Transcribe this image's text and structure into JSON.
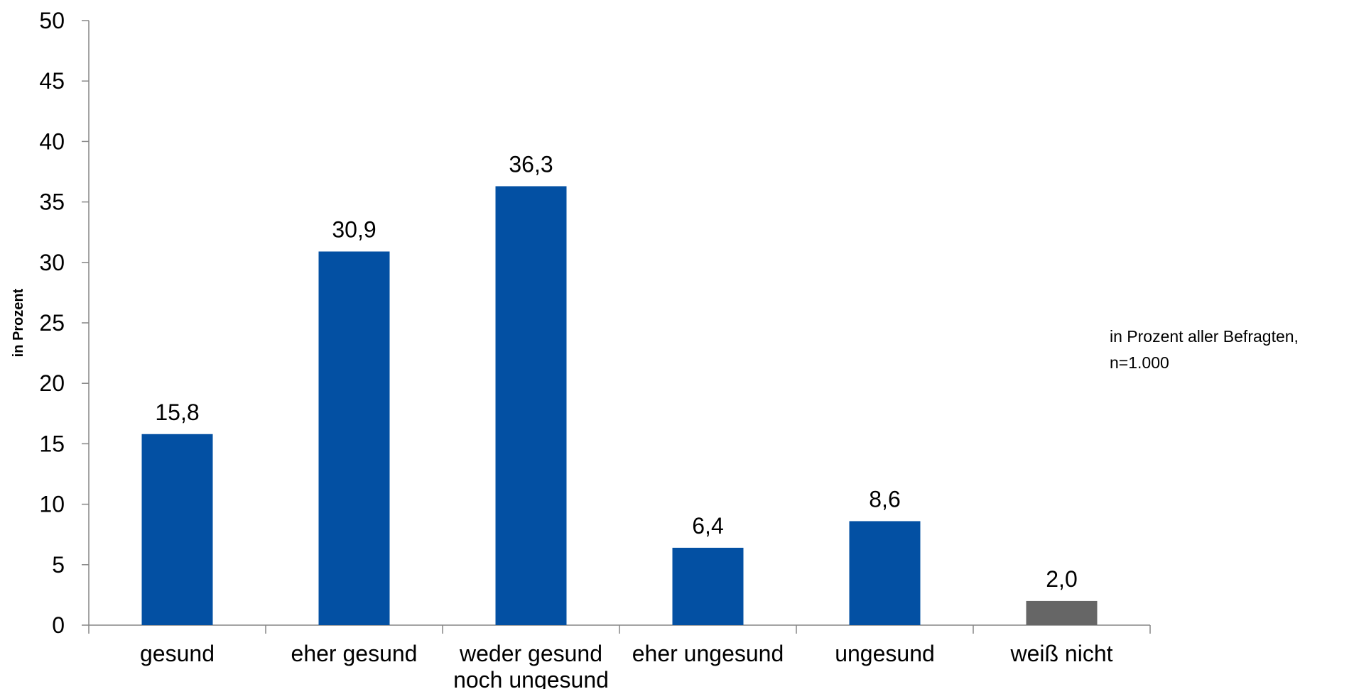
{
  "chart_data": {
    "type": "bar",
    "categories": [
      "gesund",
      "eher gesund",
      "weder gesund noch ungesund",
      "eher ungesund",
      "ungesund",
      "weiß nicht"
    ],
    "category_lines": [
      [
        "gesund"
      ],
      [
        "eher gesund"
      ],
      [
        "weder gesund",
        "noch ungesund"
      ],
      [
        "eher ungesund"
      ],
      [
        "ungesund"
      ],
      [
        "weiß nicht"
      ]
    ],
    "values": [
      15.8,
      30.9,
      36.3,
      6.4,
      8.6,
      2.0
    ],
    "value_labels": [
      "15,8",
      "30,9",
      "36,3",
      "6,4",
      "8,6",
      "2,0"
    ],
    "bar_colors": [
      "#0350A3",
      "#0350A3",
      "#0350A3",
      "#0350A3",
      "#0350A3",
      "#666666"
    ],
    "title": "",
    "xlabel": "",
    "ylabel": "in Prozent",
    "ylim": [
      0,
      50
    ],
    "yticks": [
      0,
      5,
      10,
      15,
      20,
      25,
      30,
      35,
      40,
      45,
      50
    ],
    "grid": false,
    "legend": "none",
    "annotation": [
      "in Prozent aller Befragten,",
      "n=1.000"
    ]
  }
}
